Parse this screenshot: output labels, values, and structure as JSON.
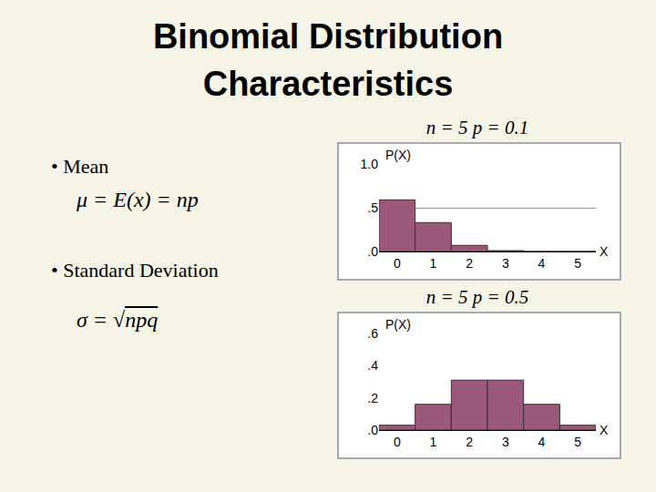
{
  "slide": {
    "title": "Binomial Distribution Characteristics",
    "bullets": [
      {
        "label": "• Mean",
        "formula": "μ = E(x) = np"
      },
      {
        "label": "• Standard Deviation",
        "formula_prefix": "σ = ",
        "radical": "√",
        "radicand": "npq"
      }
    ]
  },
  "chart_data": [
    {
      "type": "bar",
      "title": "n = 5 p = 0.1",
      "x_label": "X",
      "y_label": "P(X)",
      "x": [
        0,
        1,
        2,
        3,
        4,
        5
      ],
      "values": [
        0.59,
        0.33,
        0.07,
        0.01,
        0,
        0
      ],
      "color": "#9c5878",
      "xlim": [
        -0.5,
        5.5
      ],
      "xticks": [
        0,
        1,
        2,
        3,
        4,
        5
      ],
      "ylim": [
        0,
        1
      ],
      "yticks": [
        {
          "value": 0,
          "label": ".0"
        },
        {
          "value": 0.5,
          "label": ".5"
        },
        {
          "value": 1,
          "label": "1.0"
        }
      ],
      "grid": true
    },
    {
      "type": "bar",
      "title": "n = 5 p = 0.5",
      "x_label": "X",
      "y_label": "P(X)",
      "x": [
        0,
        1,
        2,
        3,
        4,
        5
      ],
      "values": [
        0.03,
        0.16,
        0.31,
        0.31,
        0.16,
        0.03
      ],
      "color": "#9c5878",
      "xlim": [
        -0.5,
        5.5
      ],
      "xticks": [
        0,
        1,
        2,
        3,
        4,
        5
      ],
      "ylim": [
        0,
        0.6
      ],
      "yticks": [
        {
          "value": 0,
          "label": ".0"
        },
        {
          "value": 0.2,
          "label": ".2"
        },
        {
          "value": 0.4,
          "label": ".4"
        },
        {
          "value": 0.6,
          "label": ".6"
        }
      ],
      "grid": false
    }
  ]
}
